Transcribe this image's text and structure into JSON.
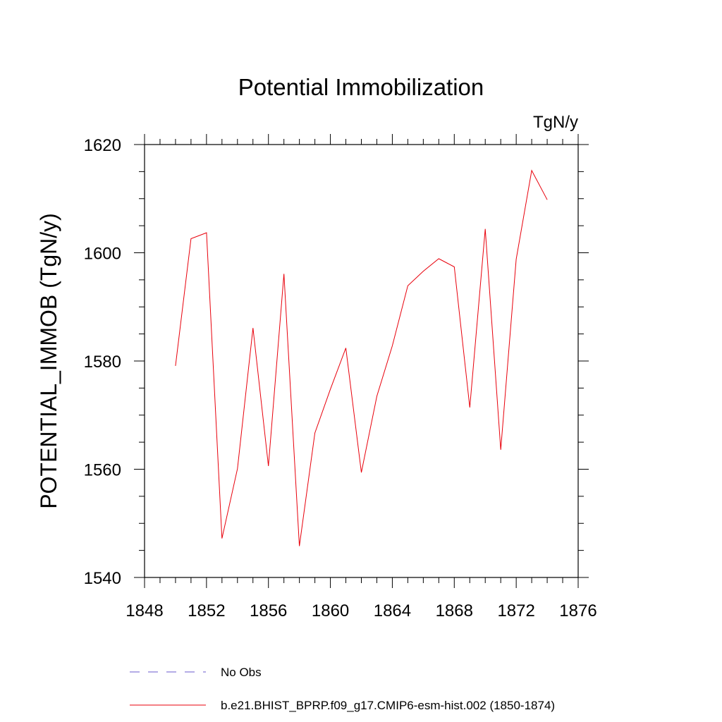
{
  "chart_data": {
    "type": "line",
    "title": "Potential Immobilization",
    "units_label": "TgN/y",
    "xlabel": "",
    "ylabel": "POTENTIAL_IMMOB  (TgN/y)",
    "xlim": [
      1848,
      1876
    ],
    "ylim": [
      1540,
      1620
    ],
    "xticks": [
      1848,
      1852,
      1856,
      1860,
      1864,
      1868,
      1872,
      1876
    ],
    "yticks": [
      1540,
      1560,
      1580,
      1600,
      1620
    ],
    "xtick_labels": [
      "1848",
      "1852",
      "1856",
      "1860",
      "1864",
      "1868",
      "1872",
      "1876"
    ],
    "ytick_labels": [
      "1540",
      "1560",
      "1580",
      "1600",
      "1620"
    ],
    "x_minor_step": 1,
    "y_minor_step": 5,
    "grid": false,
    "legend_position": "bottom",
    "series": [
      {
        "name": "b.e21.BHIST_BPRP.f09_g17.CMIP6-esm-hist.002 (1850-1874)",
        "color": "#e8000b",
        "style": "solid",
        "x": [
          1850,
          1851,
          1852,
          1853,
          1854,
          1855,
          1856,
          1857,
          1858,
          1859,
          1860,
          1861,
          1862,
          1863,
          1864,
          1865,
          1866,
          1867,
          1868,
          1869,
          1870,
          1871,
          1872,
          1873,
          1874
        ],
        "y": [
          1579.1,
          1602.6,
          1603.7,
          1547.2,
          1560.1,
          1586.1,
          1560.6,
          1596.1,
          1545.8,
          1566.7,
          1574.8,
          1582.4,
          1559.4,
          1573.5,
          1582.8,
          1593.9,
          1596.6,
          1598.9,
          1597.4,
          1571.4,
          1604.4,
          1563.6,
          1598.8,
          1615.2,
          1609.8
        ]
      }
    ],
    "legend": [
      {
        "label": "No Obs",
        "color": "#6a5acd",
        "style": "dashed"
      },
      {
        "label": "b.e21.BHIST_BPRP.f09_g17.CMIP6-esm-hist.002 (1850-1874)",
        "color": "#e8000b",
        "style": "solid"
      }
    ]
  }
}
